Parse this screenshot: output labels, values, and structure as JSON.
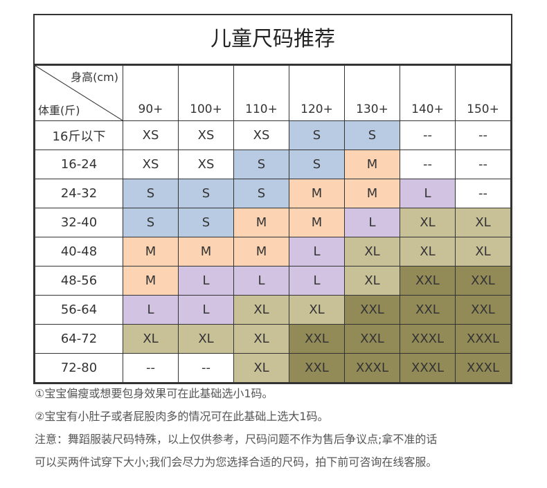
{
  "title": "儿童尺码推荐",
  "corner": {
    "height_label": "身高(cm)",
    "weight_label": "体重(斤)"
  },
  "heights": [
    "90+",
    "100+",
    "110+",
    "120+",
    "130+",
    "140+",
    "150+"
  ],
  "colors": {
    "XS": "#ffffff",
    "S": "#b8cbe3",
    "M": "#fcd4b3",
    "L": "#d1c3e1",
    "XL": "#c8c197",
    "XXL": "#928b58",
    "XXXL": "#928b58",
    "--": "#ffffff"
  },
  "rows": [
    {
      "weight": "16斤以下",
      "sizes": [
        "XS",
        "XS",
        "XS",
        "S",
        "S",
        "--",
        "--"
      ]
    },
    {
      "weight": "16-24",
      "sizes": [
        "XS",
        "XS",
        "S",
        "S",
        "M",
        "--",
        "--"
      ]
    },
    {
      "weight": "24-32",
      "sizes": [
        "S",
        "S",
        "S",
        "M",
        "M",
        "L",
        "--"
      ]
    },
    {
      "weight": "32-40",
      "sizes": [
        "S",
        "S",
        "M",
        "M",
        "L",
        "XL",
        "XL"
      ]
    },
    {
      "weight": "40-48",
      "sizes": [
        "M",
        "M",
        "M",
        "L",
        "XL",
        "XL",
        "XL"
      ]
    },
    {
      "weight": "48-56",
      "sizes": [
        "M",
        "L",
        "L",
        "L",
        "XL",
        "XXL",
        "XXL"
      ]
    },
    {
      "weight": "56-64",
      "sizes": [
        "L",
        "L",
        "XL",
        "XL",
        "XXL",
        "XXL",
        "XXL"
      ]
    },
    {
      "weight": "64-72",
      "sizes": [
        "XL",
        "XL",
        "XL",
        "XXL",
        "XXL",
        "XXXL",
        "XXXL"
      ]
    },
    {
      "weight": "72-80",
      "sizes": [
        "--",
        "--",
        "XL",
        "XXL",
        "XXXL",
        "XXXL",
        "XXXL"
      ]
    }
  ],
  "notes": [
    "①宝宝偏瘦或想要包身效果可在此基础选小1码。",
    "②宝宝有小肚子或者屁股肉多的情况可在此基础上选大1码。",
    "注意：舞蹈服装尺码特殊，以上仅供参考，尺码问题不作为售后争议点;拿不准的话",
    "可以买两件试穿下大小;我们会尽力为您选择合适的尺码，拍下前可咨询在线客服。"
  ]
}
